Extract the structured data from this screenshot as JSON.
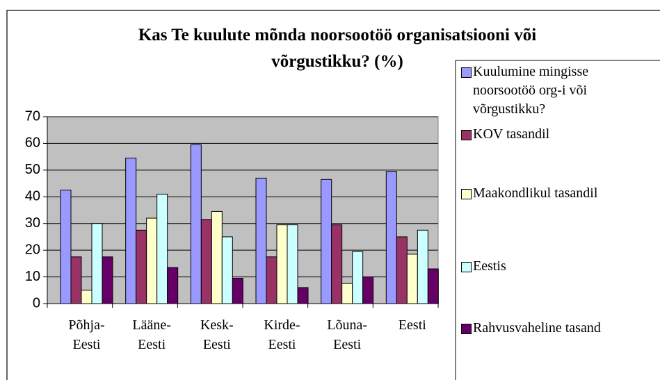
{
  "chart_data": {
    "type": "bar",
    "title": "Kas Te kuulute mõnda noorsootöö organisatsiooni või\nvõrgustikku? (%)",
    "categories": [
      "Põhja-\nEesti",
      "Lääne-\nEesti",
      "Kesk-\nEesti",
      "Kirde-\nEesti",
      "Lõuna-\nEesti",
      "Eesti"
    ],
    "series": [
      {
        "name": "Kuulumine mingisse noorsootöö org-i või võrgustikku?",
        "color": "#9999ff",
        "values": [
          42.5,
          54.5,
          59.5,
          47,
          46.5,
          49.5
        ]
      },
      {
        "name": "KOV tasandil",
        "color": "#993366",
        "values": [
          17.5,
          27.5,
          31.5,
          17.5,
          29.5,
          25
        ]
      },
      {
        "name": "Maakondlikul tasandil",
        "color": "#ffffcc",
        "values": [
          5,
          32,
          34.5,
          29.5,
          7.5,
          18.5
        ]
      },
      {
        "name": "Eestis",
        "color": "#ccffff",
        "values": [
          30,
          41,
          25,
          29.5,
          19.5,
          27.5
        ]
      },
      {
        "name": "Rahvusvaheline tasand",
        "color": "#660066",
        "values": [
          17.5,
          13.5,
          9.5,
          6,
          10,
          13
        ]
      }
    ],
    "ylim": [
      0,
      70
    ],
    "yticks": [
      0,
      10,
      20,
      30,
      40,
      50,
      60,
      70
    ],
    "grid": true,
    "legend": "right"
  }
}
